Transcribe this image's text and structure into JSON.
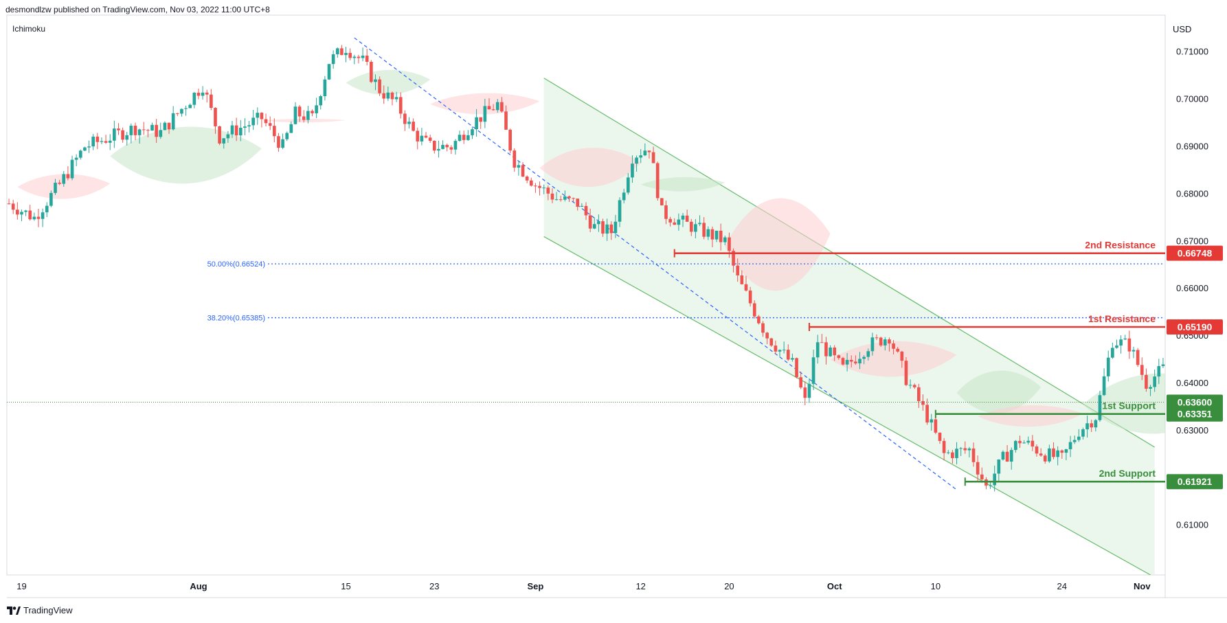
{
  "header": {
    "published_line": "desmondlzw published on TradingView.com, Nov 03, 2022 11:00 UTC+8",
    "indicator": "Ichimoku",
    "currency": "USD",
    "footer_brand": "TradingView"
  },
  "colors": {
    "up": "#26a69a",
    "down": "#ef5350",
    "resistance": "#e53935",
    "support": "#388e3c",
    "fib": "#2962ff",
    "channel_fill": "#e8f5e9",
    "channel_line": "#66bb6a",
    "cloud_bull": "#c8e6c9",
    "cloud_bear": "#ffcdd2"
  },
  "chart_data": {
    "type": "candlestick",
    "title": "",
    "ylabel": "USD",
    "ylim": [
      0.5995,
      0.7178
    ],
    "y_ticks": [
      "0.71000",
      "0.70000",
      "0.69000",
      "0.68000",
      "0.67000",
      "0.66000",
      "0.65000",
      "0.64000",
      "0.63000",
      "0.61000"
    ],
    "x_ticks": [
      "19",
      "Aug",
      "15",
      "23",
      "Sep",
      "12",
      "20",
      "Oct",
      "10",
      "24",
      "Nov"
    ],
    "x_tick_bars": [
      3,
      45,
      80,
      101,
      125,
      150,
      171,
      196,
      220,
      250,
      269
    ],
    "bars_count": 275,
    "price_path": [
      [
        0,
        0.678
      ],
      [
        6,
        0.675
      ],
      [
        12,
        0.682
      ],
      [
        18,
        0.69
      ],
      [
        24,
        0.692
      ],
      [
        30,
        0.694
      ],
      [
        36,
        0.693
      ],
      [
        42,
        0.699
      ],
      [
        46,
        0.703
      ],
      [
        50,
        0.692
      ],
      [
        55,
        0.694
      ],
      [
        60,
        0.696
      ],
      [
        65,
        0.69
      ],
      [
        68,
        0.697
      ],
      [
        72,
        0.696
      ],
      [
        76,
        0.708
      ],
      [
        80,
        0.711
      ],
      [
        84,
        0.708
      ],
      [
        88,
        0.702
      ],
      [
        92,
        0.699
      ],
      [
        96,
        0.693
      ],
      [
        100,
        0.69
      ],
      [
        105,
        0.69
      ],
      [
        110,
        0.695
      ],
      [
        116,
        0.699
      ],
      [
        120,
        0.687
      ],
      [
        125,
        0.682
      ],
      [
        130,
        0.679
      ],
      [
        135,
        0.678
      ],
      [
        139,
        0.673
      ],
      [
        143,
        0.672
      ],
      [
        148,
        0.688
      ],
      [
        152,
        0.69
      ],
      [
        155,
        0.676
      ],
      [
        160,
        0.674
      ],
      [
        165,
        0.672
      ],
      [
        170,
        0.67
      ],
      [
        173,
        0.662
      ],
      [
        176,
        0.657
      ],
      [
        180,
        0.65
      ],
      [
        186,
        0.644
      ],
      [
        189,
        0.636
      ],
      [
        192,
        0.649
      ],
      [
        198,
        0.643
      ],
      [
        204,
        0.648
      ],
      [
        209,
        0.65
      ],
      [
        213,
        0.641
      ],
      [
        218,
        0.633
      ],
      [
        222,
        0.625
      ],
      [
        228,
        0.626
      ],
      [
        232,
        0.618
      ],
      [
        236,
        0.624
      ],
      [
        240,
        0.628
      ],
      [
        246,
        0.625
      ],
      [
        250,
        0.624
      ],
      [
        254,
        0.63
      ],
      [
        258,
        0.633
      ],
      [
        262,
        0.649
      ],
      [
        266,
        0.648
      ],
      [
        270,
        0.64
      ],
      [
        274,
        0.643
      ],
      [
        276,
        0.64
      ],
      [
        278,
        0.634
      ]
    ],
    "levels": [
      {
        "label": "2nd Resistance",
        "price_label": "0.66748",
        "value": 0.66748,
        "role": "resistance"
      },
      {
        "label": "1st Resistance",
        "price_label": "0.65190",
        "value": 0.6519,
        "role": "resistance"
      },
      {
        "label": "",
        "price_label": "0.63600",
        "value": 0.636,
        "role": "last-price"
      },
      {
        "label": "1st Support",
        "price_label": "0.63351",
        "value": 0.63351,
        "role": "support"
      },
      {
        "label": "2nd Support",
        "price_label": "0.61921",
        "value": 0.61921,
        "role": "support"
      }
    ],
    "fib_levels": [
      {
        "label": "50.00%(0.66524)",
        "value": 0.66524
      },
      {
        "label": "38.20%(0.65385)",
        "value": 0.65385
      }
    ],
    "trend_line": {
      "from": [
        82,
        0.713
      ],
      "to": [
        225,
        0.6175
      ]
    },
    "channel": {
      "upper": {
        "from": [
          127,
          0.7045
        ],
        "to": [
          272,
          0.6265
        ]
      },
      "lower": {
        "from": [
          127,
          0.671
        ],
        "to": [
          272,
          0.599
        ]
      }
    },
    "cloud_segments": [
      {
        "kind": "bear",
        "x0": 2,
        "x1": 24,
        "top": 0.685,
        "bot": 0.678
      },
      {
        "kind": "bull",
        "x0": 24,
        "x1": 60,
        "top": 0.696,
        "bot": 0.68
      },
      {
        "kind": "bear",
        "x0": 60,
        "x1": 80,
        "top": 0.696,
        "bot": 0.695
      },
      {
        "kind": "bull",
        "x0": 80,
        "x1": 100,
        "top": 0.707,
        "bot": 0.7
      },
      {
        "kind": "bear",
        "x0": 100,
        "x1": 126,
        "top": 0.702,
        "bot": 0.696
      },
      {
        "kind": "bear",
        "x0": 126,
        "x1": 150,
        "top": 0.691,
        "bot": 0.68
      },
      {
        "kind": "bull",
        "x0": 150,
        "x1": 170,
        "top": 0.684,
        "bot": 0.68
      },
      {
        "kind": "bear",
        "x0": 170,
        "x1": 195,
        "top": 0.682,
        "bot": 0.656
      },
      {
        "kind": "bear",
        "x0": 195,
        "x1": 225,
        "top": 0.65,
        "bot": 0.64
      },
      {
        "kind": "bull",
        "x0": 225,
        "x1": 245,
        "top": 0.644,
        "bot": 0.632
      },
      {
        "kind": "bear",
        "x0": 230,
        "x1": 255,
        "top": 0.636,
        "bot": 0.63
      },
      {
        "kind": "bull",
        "x0": 255,
        "x1": 290,
        "top": 0.644,
        "bot": 0.627
      }
    ]
  }
}
